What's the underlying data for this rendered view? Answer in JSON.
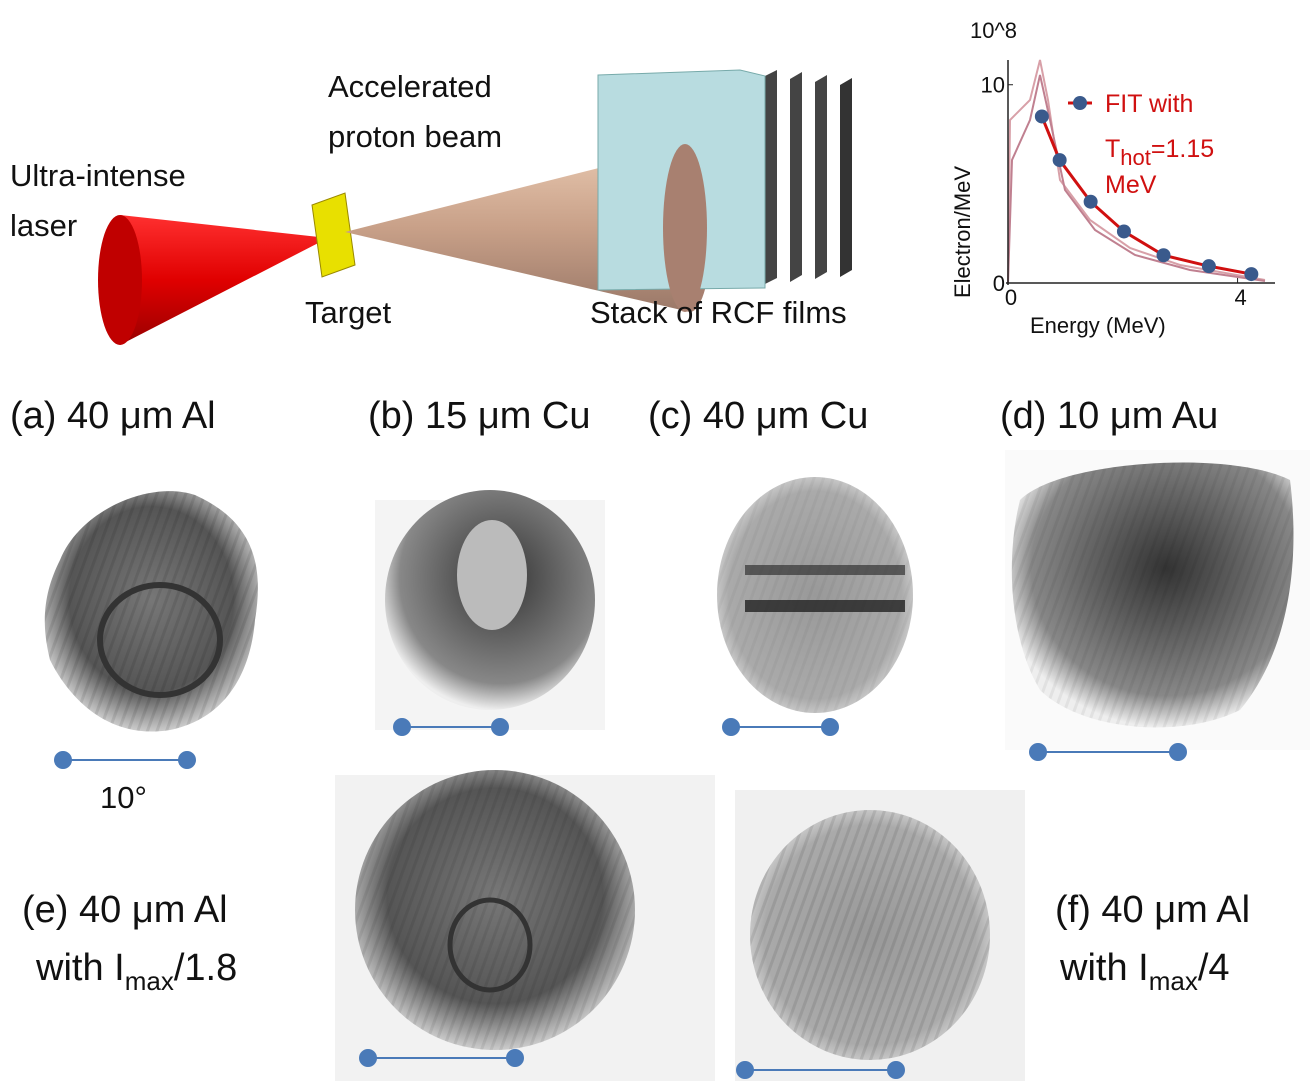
{
  "diagram": {
    "laser": [
      "Ultra-intense",
      "laser"
    ],
    "beam": [
      "Accelerated",
      "proton beam"
    ],
    "target": "Target",
    "stack": "Stack of RCF films"
  },
  "inset_chart": {
    "type": "scatter",
    "multiplier": "10^8",
    "y_label": "Electron/MeV",
    "x_label": "Energy (MeV)",
    "legend": {
      "line1": "FIT with",
      "t": "T",
      "t_sub": "hot",
      "t_value": "=1.15",
      "line3": "MeV"
    },
    "x": [
      0.59,
      0.9,
      1.44,
      2.02,
      2.71,
      3.5,
      4.24
    ],
    "values": [
      8.4,
      6.2,
      4.1,
      2.6,
      1.4,
      0.85,
      0.45
    ],
    "color": "#3a5a8c",
    "fit_color": "#d01010",
    "xlim": [
      0,
      4.6
    ],
    "ylim": [
      0,
      11.5
    ],
    "xticks": [
      0,
      4
    ],
    "yticks": [
      0,
      10
    ]
  },
  "panels": {
    "a": "(a) 40 μm Al",
    "b": "(b) 15 μm Cu",
    "c": "(c) 40 μm Cu",
    "d": "(d) 10 μm Au",
    "e": {
      "line1": "(e) 40 μm Al",
      "with": "with I",
      "sub": "max",
      "ratio": "/1.8"
    },
    "f": {
      "line1": "(f) 40 μm Al",
      "with": "with I",
      "sub": "max",
      "ratio": "/4"
    },
    "scale": "10°"
  }
}
